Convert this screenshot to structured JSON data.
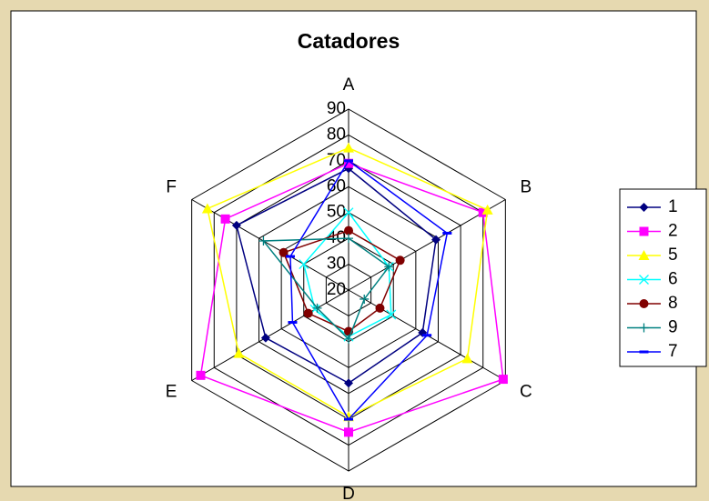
{
  "chart_data": {
    "type": "radar",
    "title": "Catadores",
    "categories": [
      "A",
      "B",
      "C",
      "D",
      "E",
      "F"
    ],
    "ylim": [
      20,
      90
    ],
    "yticks": [
      20,
      30,
      40,
      50,
      60,
      70,
      80,
      90
    ],
    "grid": true,
    "legend": "right",
    "series": [
      {
        "name": "1",
        "color": "#000080",
        "marker": "diamond",
        "values": [
          67,
          59,
          53,
          56,
          57,
          70
        ]
      },
      {
        "name": "2",
        "color": "#ff00ff",
        "marker": "square",
        "values": [
          69,
          80,
          89,
          75,
          86,
          75
        ]
      },
      {
        "name": "5",
        "color": "#ffff00",
        "marker": "triangle",
        "values": [
          75,
          82,
          73,
          69,
          69,
          83
        ]
      },
      {
        "name": "6",
        "color": "#00ffff",
        "marker": "x",
        "values": [
          50,
          38,
          39,
          38,
          35,
          40
        ]
      },
      {
        "name": "8",
        "color": "#800000",
        "marker": "circle",
        "values": [
          43,
          43,
          34,
          36,
          38,
          49
        ]
      },
      {
        "name": "9",
        "color": "#008080",
        "marker": "plus",
        "values": [
          40,
          38,
          27,
          39,
          34,
          58
        ]
      },
      {
        "name": "7",
        "color": "#0000ff",
        "marker": "dash",
        "values": [
          70,
          64,
          55,
          70,
          45,
          46
        ]
      }
    ]
  }
}
